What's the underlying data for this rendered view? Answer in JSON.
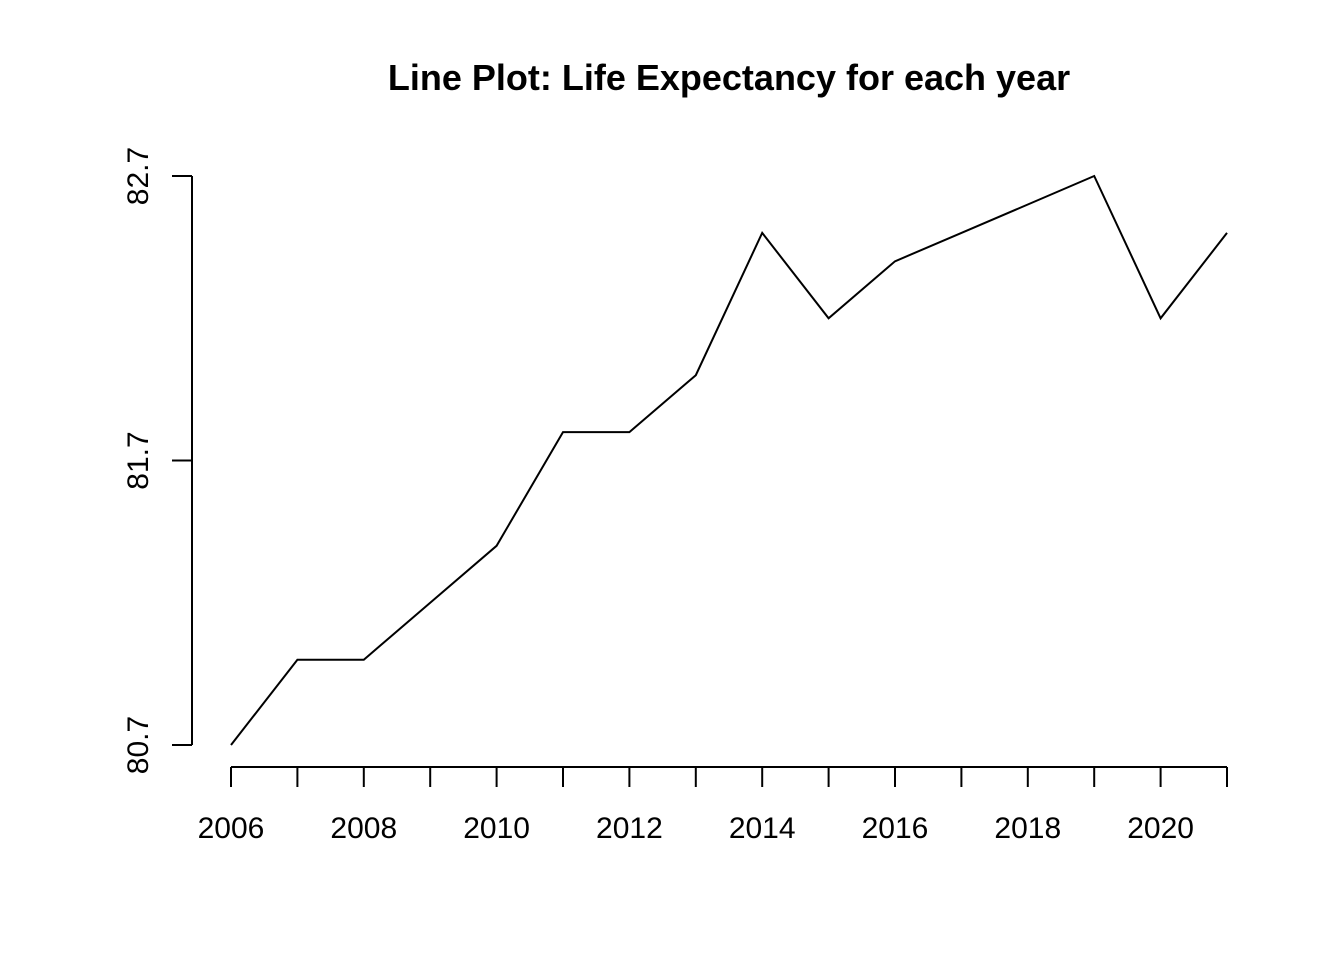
{
  "chart_data": {
    "type": "line",
    "title": "Line Plot: Life Expectancy for each year",
    "xlabel": "",
    "ylabel": "",
    "x": [
      2006,
      2007,
      2008,
      2009,
      2010,
      2011,
      2012,
      2013,
      2014,
      2015,
      2016,
      2017,
      2018,
      2019,
      2020,
      2021
    ],
    "series": [
      {
        "values": [
          80.7,
          81.0,
          81.0,
          81.2,
          81.4,
          81.8,
          81.8,
          82.0,
          82.5,
          82.2,
          82.4,
          82.5,
          82.6,
          82.7,
          82.2,
          82.5
        ]
      }
    ],
    "xlim": [
      2006,
      2021
    ],
    "ylim": [
      80.7,
      82.7
    ],
    "x_ticks": [
      2006,
      2007,
      2008,
      2009,
      2010,
      2011,
      2012,
      2013,
      2014,
      2015,
      2016,
      2017,
      2018,
      2019,
      2020,
      2021
    ],
    "x_tick_labels": [
      "2006",
      "2008",
      "2010",
      "2012",
      "2014",
      "2016",
      "2018",
      "2020"
    ],
    "y_ticks": [
      "80.7",
      "81.7",
      "82.7"
    ],
    "grid": false,
    "line_color": "#000000"
  }
}
